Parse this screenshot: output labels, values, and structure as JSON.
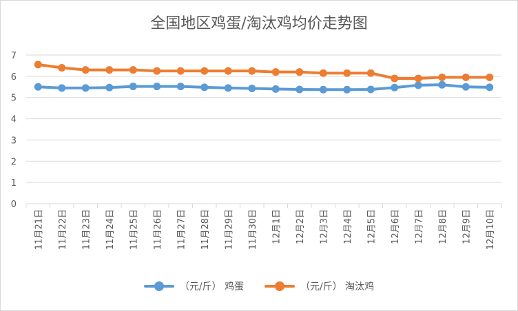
{
  "chart_data": {
    "type": "line",
    "title": "全国地区鸡蛋/淘汰鸡均价走势图",
    "xlabel": "",
    "ylabel": "",
    "ylim": [
      0,
      7
    ],
    "yticks": [
      0,
      1,
      2,
      3,
      4,
      5,
      6,
      7
    ],
    "grid": true,
    "legend_position": "bottom",
    "categories": [
      "11月21日",
      "11月22日",
      "11月23日",
      "11月24日",
      "11月25日",
      "11月26日",
      "11月27日",
      "11月28日",
      "11月29日",
      "11月30日",
      "12月1日",
      "12月2日",
      "12月3日",
      "12月4日",
      "12月5日",
      "12月6日",
      "12月7日",
      "12月8日",
      "12月9日",
      "12月10日"
    ],
    "series": [
      {
        "name": "（元/斤） 鸡蛋",
        "color": "#5b9bd5",
        "values": [
          5.5,
          5.45,
          5.45,
          5.47,
          5.52,
          5.52,
          5.52,
          5.48,
          5.45,
          5.43,
          5.4,
          5.38,
          5.37,
          5.37,
          5.38,
          5.47,
          5.58,
          5.6,
          5.5,
          5.48
        ]
      },
      {
        "name": "（元/斤） 淘汰鸡",
        "color": "#ed7d31",
        "values": [
          6.55,
          6.4,
          6.3,
          6.3,
          6.3,
          6.25,
          6.25,
          6.25,
          6.25,
          6.25,
          6.2,
          6.2,
          6.15,
          6.15,
          6.15,
          5.9,
          5.9,
          5.95,
          5.95,
          5.95
        ]
      }
    ]
  }
}
